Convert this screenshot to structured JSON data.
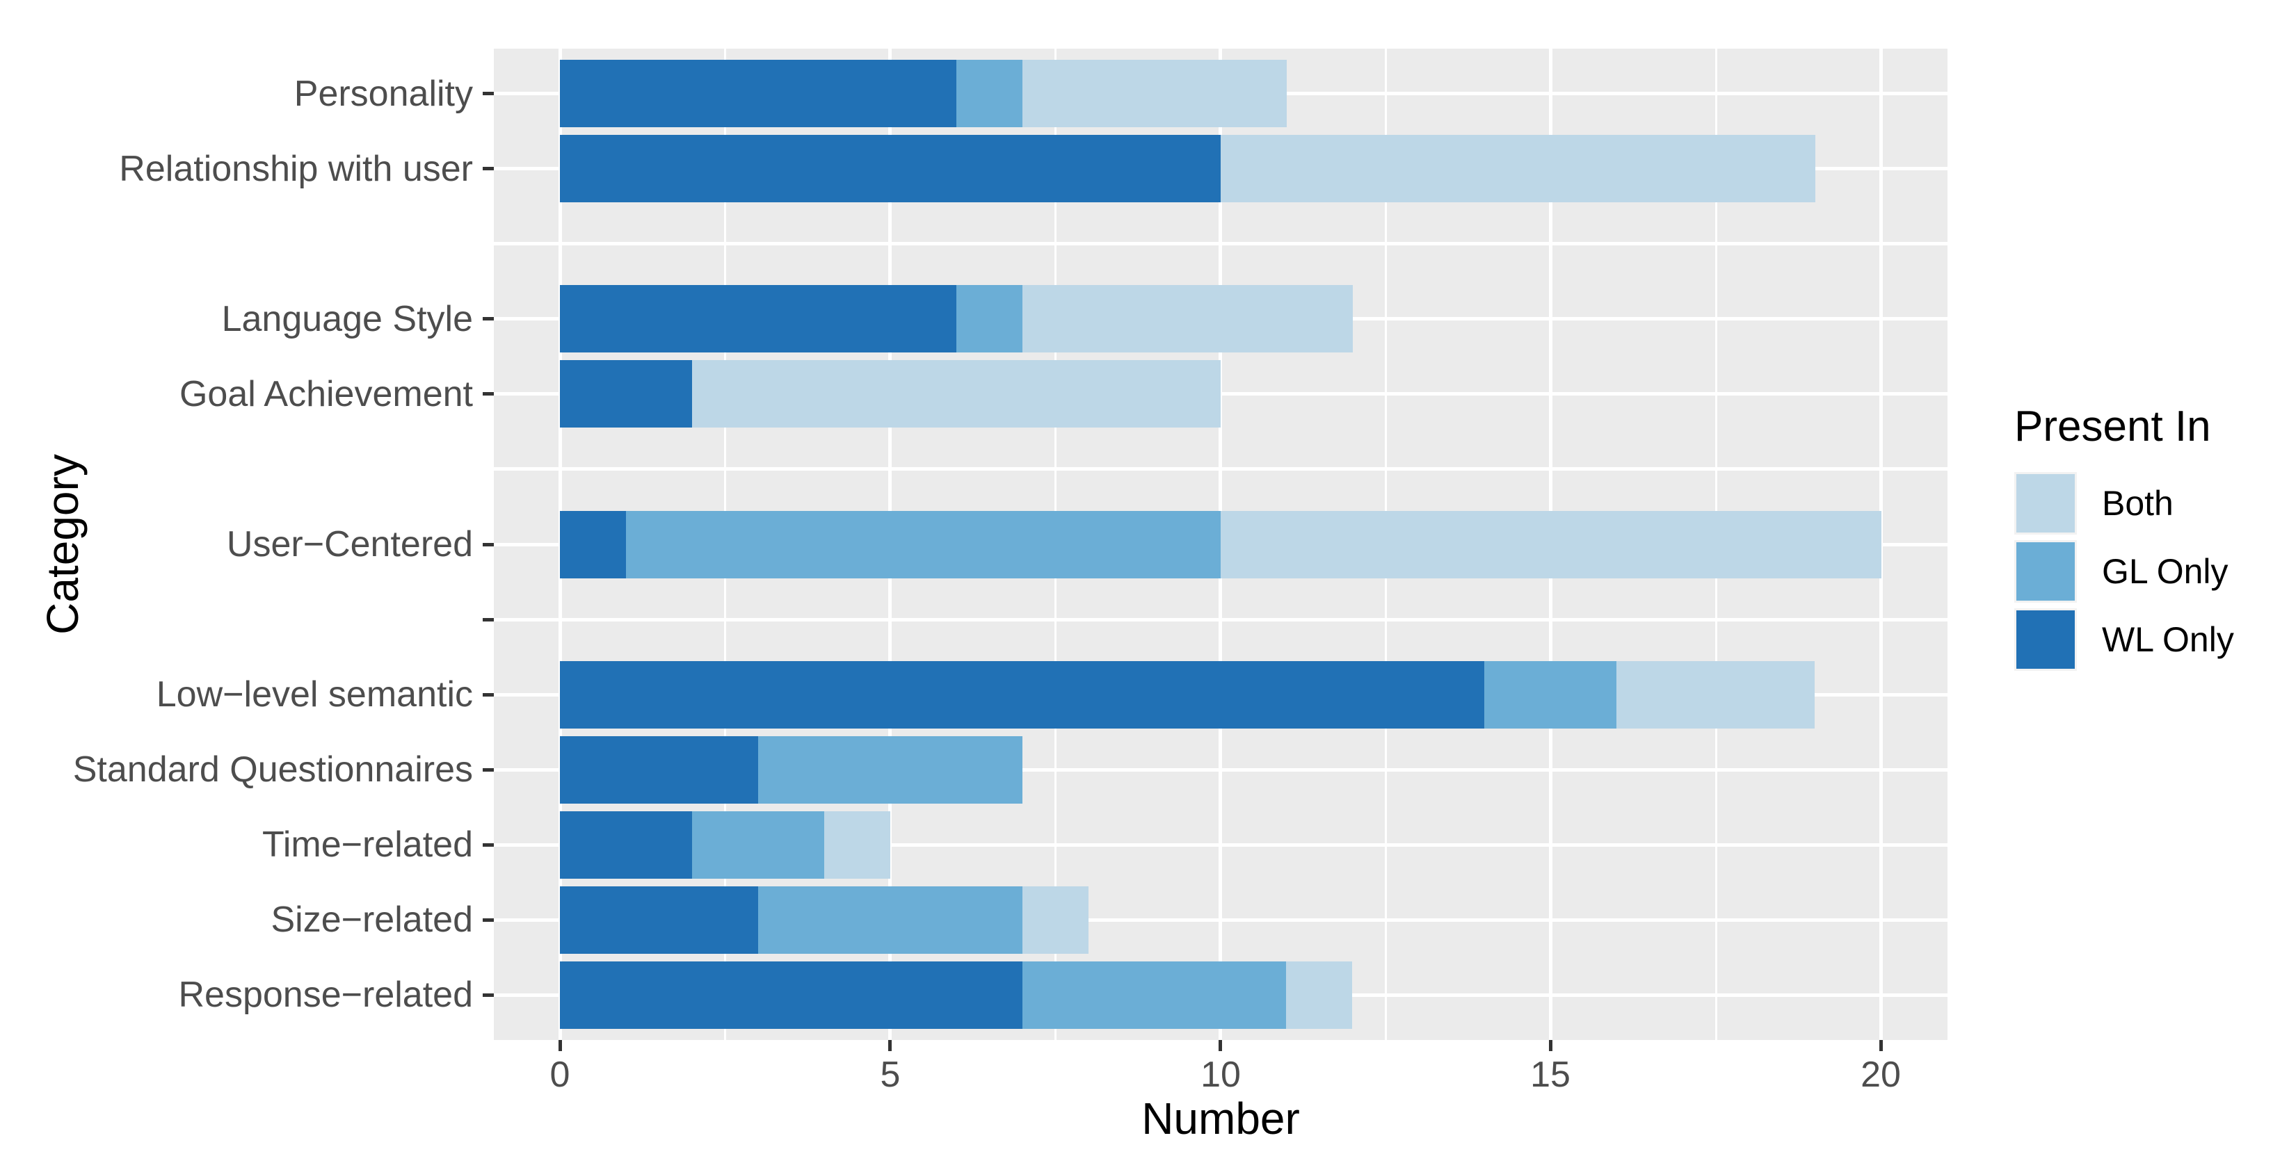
{
  "figure": {
    "background": "#ffffff",
    "panel_background": "#ebebeb",
    "gridline_color": "#ffffff",
    "tick_mark_color": "#333333",
    "tick_label_color": "#4d4d4d",
    "title_color": "#000000"
  },
  "chart_data": {
    "type": "bar",
    "orientation": "horizontal",
    "stacked": true,
    "title": "",
    "xlabel": "Number",
    "ylabel": "Category",
    "xlim": [
      0,
      20
    ],
    "x_ticks": [
      0,
      5,
      10,
      15,
      20
    ],
    "x_minor_gridlines": [
      2.5,
      7.5,
      12.5,
      17.5
    ],
    "grid": "on",
    "categories": [
      "Personality",
      "Relationship with user",
      "",
      "Language Style",
      "Goal Achievement",
      "",
      "User−Centered",
      "",
      "Low−level semantic",
      "Standard Questionnaires",
      "Time−related",
      "Size−related",
      "Response−related"
    ],
    "row_has_tick": [
      true,
      true,
      false,
      true,
      true,
      false,
      true,
      true,
      true,
      true,
      true,
      true,
      true
    ],
    "series": [
      {
        "name": "WL Only",
        "color": "#2171b5",
        "values": [
          6,
          10,
          null,
          6,
          2,
          null,
          1,
          null,
          14,
          3,
          2,
          3,
          7
        ]
      },
      {
        "name": "GL Only",
        "color": "#6baed6",
        "values": [
          1,
          0,
          null,
          1,
          0,
          null,
          9,
          null,
          2,
          4,
          2,
          4,
          4
        ]
      },
      {
        "name": "Both",
        "color": "#bdd7e7",
        "values": [
          4,
          9,
          null,
          5,
          8,
          null,
          10,
          null,
          3,
          0,
          1,
          1,
          1
        ]
      }
    ],
    "totals": [
      11,
      19,
      null,
      12,
      10,
      null,
      20,
      null,
      19,
      7,
      5,
      8,
      12
    ],
    "legend": {
      "title": "Present In",
      "position": "right",
      "entries": [
        "Both",
        "GL Only",
        "WL Only"
      ]
    }
  }
}
